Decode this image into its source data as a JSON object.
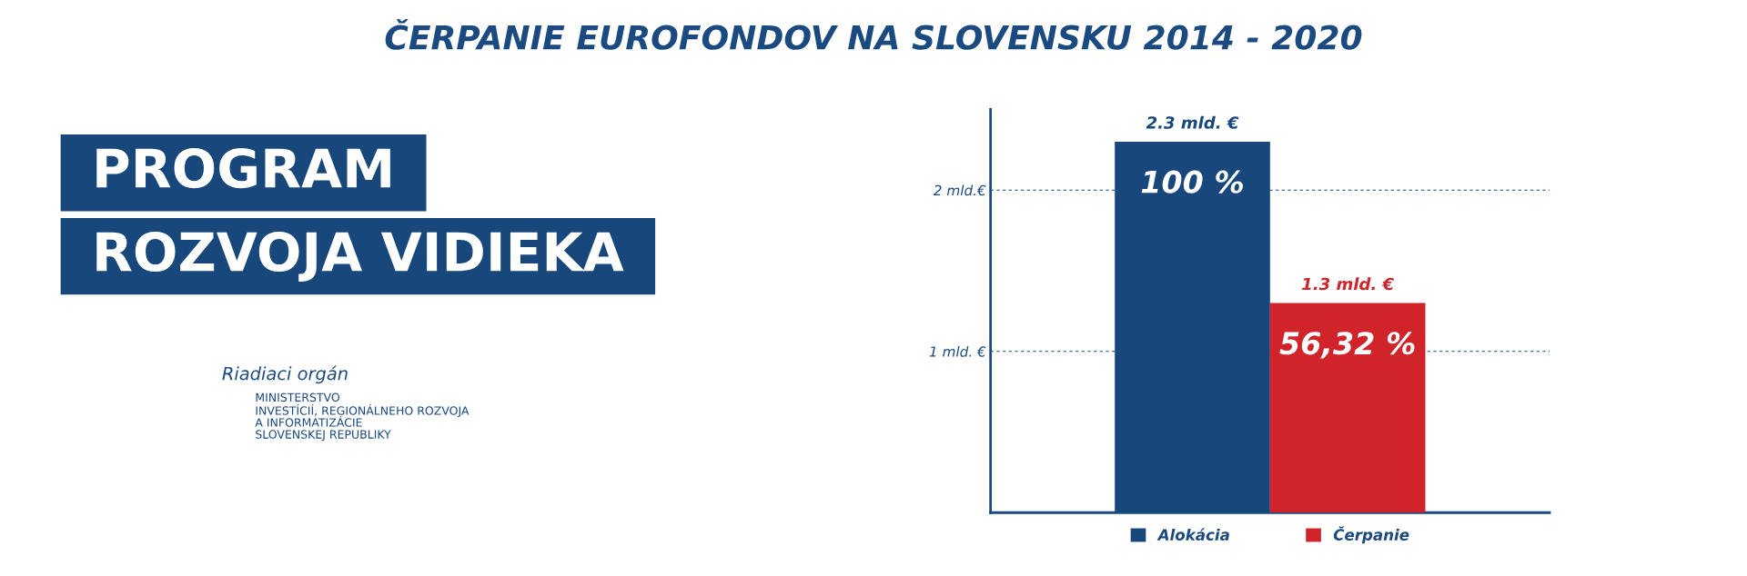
{
  "chart_data": {
    "type": "bar",
    "title": "ČERPANIE EUROFONDOV NA SLOVENSKU 2014 - 2020",
    "subtitle": "PROGRAM\nROZVOJA VIDIEKA",
    "categories": [
      null,
      null
    ],
    "series": [
      {
        "name": "Alokácia",
        "color": "#17477b",
        "values": [
          2.3,
          null
        ],
        "value_labels": [
          "2.3 mld. €",
          null
        ]
      },
      {
        "name": "Čerpanie",
        "color": "#d0232a",
        "values": [
          null,
          1.3
        ],
        "value_labels": [
          null,
          "1.3 mld. €"
        ]
      }
    ],
    "ylim": [
      0,
      2.5
    ],
    "yticks": [
      {
        "value": 1,
        "label": "1 mld. €"
      },
      {
        "value": 2,
        "label": "2 mld.€"
      }
    ],
    "grid": "y",
    "legend": "bottom",
    "tick_labels": "y",
    "annotations": [
      "100 %",
      "56,32 %",
      "Riadiaci orgán",
      "MINISTERSTVO",
      "INVESTÍCIÍ, REGIONÁLNEHO ROZVOJA\nA INFORMATIZÁCIE\nSLOVENSKEJ REPUBLIKY"
    ]
  }
}
